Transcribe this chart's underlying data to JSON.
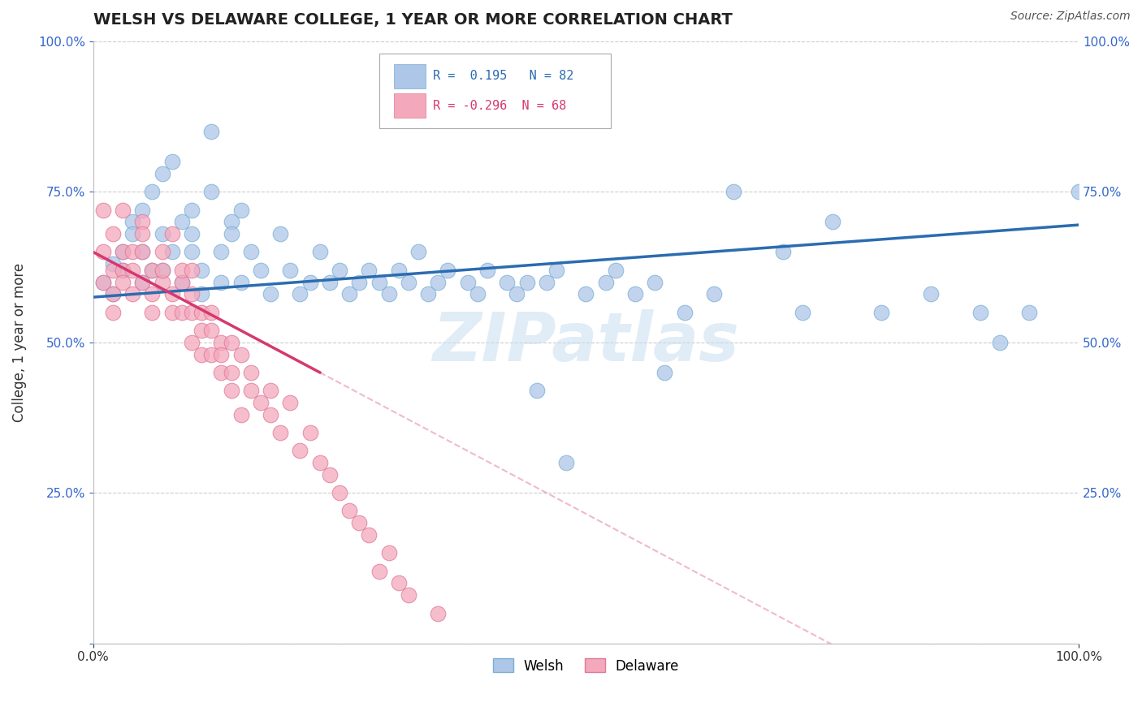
{
  "title": "WELSH VS DELAWARE COLLEGE, 1 YEAR OR MORE CORRELATION CHART",
  "source_text": "Source: ZipAtlas.com",
  "ylabel": "College, 1 year or more",
  "xlim": [
    0.0,
    1.0
  ],
  "ylim": [
    0.0,
    1.0
  ],
  "welsh_color": "#aec6e8",
  "welsh_edge_color": "#7aafd4",
  "delaware_color": "#f4a8bc",
  "delaware_edge_color": "#e07898",
  "welsh_line_color": "#2b6cb0",
  "delaware_line_color": "#d63870",
  "welsh_R": 0.195,
  "welsh_N": 82,
  "delaware_R": -0.296,
  "delaware_N": 68,
  "watermark": "ZIPatlas",
  "background_color": "#ffffff",
  "grid_color": "#cccccc",
  "title_fontsize": 14,
  "label_fontsize": 12,
  "tick_fontsize": 11,
  "welsh_scatter_x": [
    0.01,
    0.02,
    0.02,
    0.03,
    0.03,
    0.04,
    0.04,
    0.05,
    0.05,
    0.05,
    0.06,
    0.06,
    0.07,
    0.07,
    0.07,
    0.08,
    0.08,
    0.09,
    0.09,
    0.1,
    0.1,
    0.1,
    0.11,
    0.11,
    0.12,
    0.12,
    0.13,
    0.13,
    0.14,
    0.14,
    0.15,
    0.15,
    0.16,
    0.17,
    0.18,
    0.19,
    0.2,
    0.21,
    0.22,
    0.23,
    0.24,
    0.25,
    0.26,
    0.27,
    0.28,
    0.29,
    0.3,
    0.31,
    0.32,
    0.33,
    0.34,
    0.35,
    0.36,
    0.37,
    0.38,
    0.39,
    0.4,
    0.42,
    0.43,
    0.44,
    0.45,
    0.46,
    0.47,
    0.48,
    0.5,
    0.52,
    0.53,
    0.55,
    0.57,
    0.58,
    0.6,
    0.63,
    0.65,
    0.7,
    0.72,
    0.75,
    0.8,
    0.85,
    0.9,
    0.92,
    0.95,
    1.0
  ],
  "welsh_scatter_y": [
    0.6,
    0.63,
    0.58,
    0.65,
    0.62,
    0.7,
    0.68,
    0.72,
    0.65,
    0.6,
    0.75,
    0.62,
    0.78,
    0.68,
    0.62,
    0.8,
    0.65,
    0.7,
    0.6,
    0.68,
    0.72,
    0.65,
    0.62,
    0.58,
    0.85,
    0.75,
    0.65,
    0.6,
    0.7,
    0.68,
    0.72,
    0.6,
    0.65,
    0.62,
    0.58,
    0.68,
    0.62,
    0.58,
    0.6,
    0.65,
    0.6,
    0.62,
    0.58,
    0.6,
    0.62,
    0.6,
    0.58,
    0.62,
    0.6,
    0.65,
    0.58,
    0.6,
    0.62,
    0.88,
    0.6,
    0.58,
    0.62,
    0.6,
    0.58,
    0.6,
    0.42,
    0.6,
    0.62,
    0.3,
    0.58,
    0.6,
    0.62,
    0.58,
    0.6,
    0.45,
    0.55,
    0.58,
    0.75,
    0.65,
    0.55,
    0.7,
    0.55,
    0.58,
    0.55,
    0.5,
    0.55,
    0.75
  ],
  "delaware_scatter_x": [
    0.01,
    0.01,
    0.01,
    0.02,
    0.02,
    0.02,
    0.02,
    0.03,
    0.03,
    0.03,
    0.03,
    0.04,
    0.04,
    0.04,
    0.05,
    0.05,
    0.05,
    0.05,
    0.06,
    0.06,
    0.06,
    0.07,
    0.07,
    0.07,
    0.08,
    0.08,
    0.08,
    0.09,
    0.09,
    0.09,
    0.1,
    0.1,
    0.1,
    0.1,
    0.11,
    0.11,
    0.11,
    0.12,
    0.12,
    0.12,
    0.13,
    0.13,
    0.13,
    0.14,
    0.14,
    0.14,
    0.15,
    0.15,
    0.16,
    0.16,
    0.17,
    0.18,
    0.18,
    0.19,
    0.2,
    0.21,
    0.22,
    0.23,
    0.24,
    0.25,
    0.26,
    0.27,
    0.28,
    0.29,
    0.3,
    0.31,
    0.32,
    0.35
  ],
  "delaware_scatter_y": [
    0.6,
    0.65,
    0.72,
    0.58,
    0.62,
    0.68,
    0.55,
    0.62,
    0.65,
    0.6,
    0.72,
    0.58,
    0.62,
    0.65,
    0.7,
    0.6,
    0.65,
    0.68,
    0.55,
    0.62,
    0.58,
    0.65,
    0.6,
    0.62,
    0.68,
    0.58,
    0.55,
    0.6,
    0.55,
    0.62,
    0.58,
    0.55,
    0.62,
    0.5,
    0.55,
    0.52,
    0.48,
    0.52,
    0.48,
    0.55,
    0.5,
    0.45,
    0.48,
    0.45,
    0.5,
    0.42,
    0.48,
    0.38,
    0.42,
    0.45,
    0.4,
    0.38,
    0.42,
    0.35,
    0.4,
    0.32,
    0.35,
    0.3,
    0.28,
    0.25,
    0.22,
    0.2,
    0.18,
    0.12,
    0.15,
    0.1,
    0.08,
    0.05
  ]
}
